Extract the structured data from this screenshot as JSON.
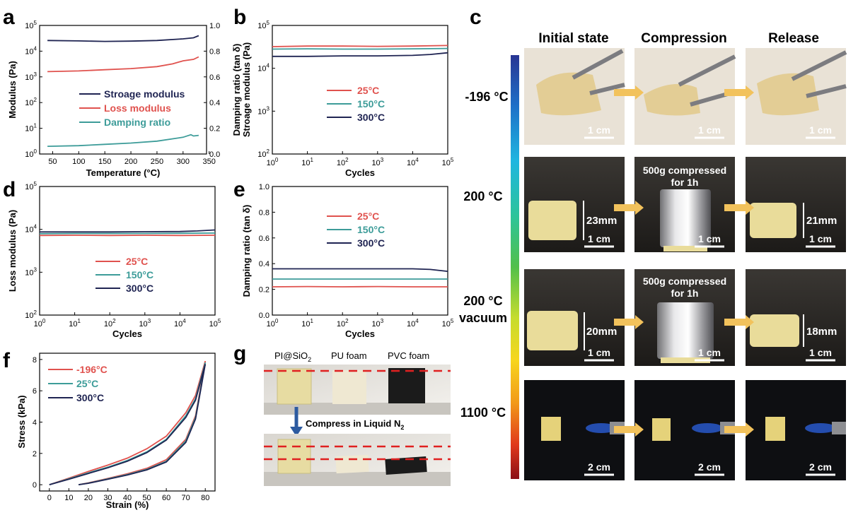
{
  "panels": {
    "a": "a",
    "b": "b",
    "c": "c",
    "d": "d",
    "e": "e",
    "f": "f",
    "g": "g"
  },
  "colors": {
    "red": "#e0524e",
    "teal": "#3d9c99",
    "navy": "#1f2452",
    "arrow": "#f2c25c"
  },
  "chart_data": [
    {
      "id": "a",
      "type": "line",
      "xlabel": "Temperature (°C)",
      "ylabel": "Modulus (Pa)",
      "y2label": "Damping ratio (tan δ)",
      "xlim": [
        25,
        345
      ],
      "ylim_log": [
        0,
        5
      ],
      "y2lim": [
        0,
        1.0
      ],
      "x_ticks": [
        "50",
        "100",
        "150",
        "200",
        "250",
        "300",
        "350"
      ],
      "y2_ticks": [
        "0.0",
        "0.2",
        "0.4",
        "0.6",
        "0.8",
        "1.0"
      ],
      "series": [
        {
          "name": "Stroage modulus",
          "color": "#1f2452",
          "axis": "left",
          "x": [
            40,
            100,
            150,
            200,
            250,
            300,
            320,
            330
          ],
          "y": [
            26000,
            25000,
            24000,
            24500,
            26000,
            30000,
            33000,
            40000
          ]
        },
        {
          "name": "Loss modulus",
          "color": "#e0524e",
          "axis": "left",
          "x": [
            40,
            100,
            150,
            200,
            250,
            280,
            300,
            320,
            330
          ],
          "y": [
            1600,
            1700,
            1900,
            2100,
            2500,
            3200,
            4200,
            4800,
            6000
          ]
        },
        {
          "name": "Damping ratio",
          "color": "#3d9c99",
          "axis": "right",
          "x": [
            40,
            100,
            150,
            200,
            250,
            300,
            315,
            320,
            330
          ],
          "y": [
            0.06,
            0.065,
            0.075,
            0.085,
            0.1,
            0.13,
            0.15,
            0.14,
            0.145
          ]
        }
      ]
    },
    {
      "id": "b",
      "type": "line",
      "xlabel": "Cycles",
      "ylabel": "Stroage modulus (Pa)",
      "xlim_log": [
        0,
        5
      ],
      "ylim_log": [
        2,
        5
      ],
      "series": [
        {
          "name": "25°C",
          "color": "#e0524e",
          "x_log": [
            0,
            1,
            2,
            3,
            4,
            5
          ],
          "y": [
            32000,
            33000,
            33000,
            32500,
            33000,
            34000
          ]
        },
        {
          "name": "150°C",
          "color": "#3d9c99",
          "x_log": [
            0,
            1,
            2,
            3,
            4,
            5
          ],
          "y": [
            28000,
            28500,
            28000,
            28000,
            28500,
            29000
          ]
        },
        {
          "name": "300°C",
          "color": "#1f2452",
          "x_log": [
            0,
            1,
            2,
            3,
            4,
            4.5,
            5
          ],
          "y": [
            19000,
            19000,
            19500,
            19500,
            20000,
            21000,
            23000
          ]
        }
      ]
    },
    {
      "id": "d",
      "type": "line",
      "xlabel": "Cycles",
      "ylabel": "Loss modulus (Pa)",
      "xlim_log": [
        0,
        5
      ],
      "ylim_log": [
        2,
        5
      ],
      "series": [
        {
          "name": "25°C",
          "color": "#e0524e",
          "x_log": [
            0,
            1,
            2,
            3,
            4,
            5
          ],
          "y": [
            7200,
            7300,
            7200,
            7300,
            7200,
            7300
          ]
        },
        {
          "name": "150°C",
          "color": "#3d9c99",
          "x_log": [
            0,
            1,
            2,
            3,
            4,
            5
          ],
          "y": [
            7900,
            8000,
            8000,
            8000,
            8100,
            8200
          ]
        },
        {
          "name": "300°C",
          "color": "#1f2452",
          "x_log": [
            0,
            1,
            2,
            3,
            4,
            4.5,
            5
          ],
          "y": [
            8700,
            8700,
            8700,
            8800,
            8900,
            9200,
            9700
          ]
        }
      ]
    },
    {
      "id": "e",
      "type": "line",
      "xlabel": "Cycles",
      "ylabel": "Damping ratio (tan δ)",
      "xlim_log": [
        0,
        5
      ],
      "ylim": [
        0,
        1.0
      ],
      "y_ticks": [
        "0.0",
        "0.2",
        "0.4",
        "0.6",
        "0.8",
        "1.0"
      ],
      "series": [
        {
          "name": "25°C",
          "color": "#e0524e",
          "x_log": [
            0,
            1,
            2,
            3,
            4,
            5
          ],
          "y": [
            0.22,
            0.222,
            0.22,
            0.222,
            0.22,
            0.22
          ]
        },
        {
          "name": "150°C",
          "color": "#3d9c99",
          "x_log": [
            0,
            1,
            2,
            3,
            4,
            5
          ],
          "y": [
            0.28,
            0.28,
            0.28,
            0.28,
            0.28,
            0.28
          ]
        },
        {
          "name": "300°C",
          "color": "#1f2452",
          "x_log": [
            0,
            1,
            2,
            3,
            4,
            4.5,
            5
          ],
          "y": [
            0.36,
            0.36,
            0.36,
            0.36,
            0.36,
            0.355,
            0.34
          ]
        }
      ]
    },
    {
      "id": "f",
      "type": "line",
      "xlabel": "Strain (%)",
      "ylabel": "Stress (kPa)",
      "xlim": [
        -5,
        85
      ],
      "ylim": [
        -0.4,
        8.4
      ],
      "x_ticks": [
        "0",
        "10",
        "20",
        "30",
        "40",
        "50",
        "60",
        "70",
        "80"
      ],
      "y_ticks": [
        "0",
        "2",
        "4",
        "6",
        "8"
      ],
      "series": [
        {
          "name": "-196°C",
          "color": "#e0524e",
          "loading_x": [
            0,
            10,
            20,
            30,
            40,
            50,
            60,
            70,
            75,
            80
          ],
          "loading_y": [
            0,
            0.42,
            0.85,
            1.25,
            1.7,
            2.3,
            3.1,
            4.6,
            5.7,
            7.9
          ],
          "unloading_x": [
            80,
            75,
            70,
            60,
            50,
            40,
            30,
            20,
            15
          ],
          "unloading_y": [
            7.9,
            4.4,
            2.9,
            1.6,
            1.05,
            0.7,
            0.4,
            0.12,
            0
          ]
        },
        {
          "name": "25°C",
          "color": "#3d9c99",
          "loading_x": [
            0,
            10,
            20,
            30,
            40,
            50,
            60,
            70,
            75,
            80
          ],
          "loading_y": [
            0,
            0.38,
            0.76,
            1.12,
            1.55,
            2.1,
            2.9,
            4.4,
            5.5,
            7.8
          ],
          "unloading_x": [
            80,
            75,
            70,
            60,
            50,
            40,
            30,
            20,
            15
          ],
          "unloading_y": [
            7.8,
            4.3,
            2.8,
            1.5,
            0.98,
            0.65,
            0.37,
            0.1,
            0
          ]
        },
        {
          "name": "300°C",
          "color": "#1f2452",
          "loading_x": [
            0,
            10,
            20,
            30,
            40,
            50,
            60,
            70,
            75,
            80
          ],
          "loading_y": [
            0,
            0.35,
            0.72,
            1.08,
            1.5,
            2.05,
            2.85,
            4.3,
            5.4,
            7.7
          ],
          "unloading_x": [
            80,
            75,
            70,
            60,
            50,
            40,
            30,
            20,
            15
          ],
          "unloading_y": [
            7.7,
            4.2,
            2.7,
            1.45,
            0.95,
            0.62,
            0.35,
            0.09,
            0
          ]
        }
      ]
    }
  ],
  "panel_c": {
    "headers": [
      "Initial state",
      "Compression",
      "Release"
    ],
    "temperatures": [
      "-196 °C",
      "200 °C",
      "200 °C",
      "vacuum",
      "1100 °C"
    ],
    "scale_1cm": "1 cm",
    "scale_2cm": "2 cm",
    "compress_line1": "500g compressed",
    "compress_line2": "for 1h",
    "dims": [
      "23mm",
      "21mm",
      "20mm",
      "18mm"
    ]
  },
  "panel_g": {
    "labels": [
      "PI@SiO",
      "2",
      "PU foam",
      "PVC foam"
    ],
    "arrow_text": "Compress in Liquid N",
    "arrow_sub": "2"
  }
}
